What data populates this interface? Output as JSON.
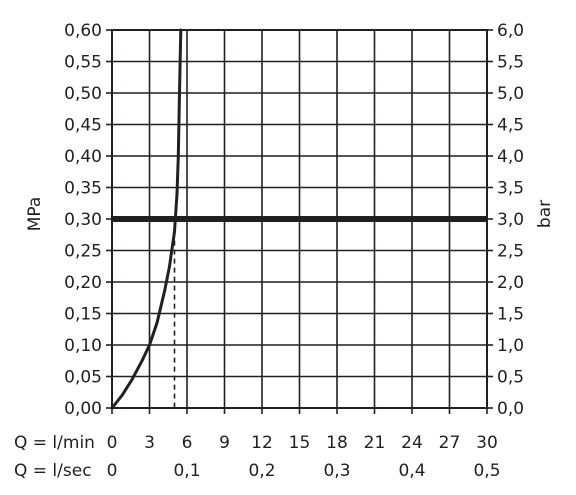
{
  "chart_data": {
    "type": "line",
    "x_axis_bottom": {
      "label": "Q = l/min",
      "range": [
        0,
        30
      ],
      "ticks": [
        "0",
        "3",
        "6",
        "9",
        "12",
        "15",
        "18",
        "21",
        "24",
        "27",
        "30"
      ]
    },
    "x_axis_secondary": {
      "label": "Q = l/sec",
      "ticks": [
        {
          "text": "0",
          "value": 0
        },
        {
          "text": "0,1",
          "value": 6
        },
        {
          "text": "0,2",
          "value": 12
        },
        {
          "text": "0,3",
          "value": 18
        },
        {
          "text": "0,4",
          "value": 24
        },
        {
          "text": "0,5",
          "value": 30
        }
      ]
    },
    "y_axis_left": {
      "label": "MPa",
      "range": [
        0,
        0.6
      ],
      "ticks": [
        "0,00",
        "0,05",
        "0,10",
        "0,15",
        "0,20",
        "0,25",
        "0,30",
        "0,35",
        "0,40",
        "0,45",
        "0,50",
        "0,55",
        "0,60"
      ]
    },
    "y_axis_right": {
      "label": "bar",
      "range": [
        0,
        6
      ],
      "ticks": [
        "0,0",
        "0,5",
        "1,0",
        "1,5",
        "2,0",
        "2,5",
        "3,0",
        "3,5",
        "4,0",
        "4,5",
        "5,0",
        "5,5",
        "6,0"
      ]
    },
    "grid": true,
    "series": [
      {
        "x": [
          0,
          0.8,
          1.6,
          2.4,
          3.0,
          3.6,
          4.2,
          4.6,
          5.0,
          5.2,
          5.3,
          5.35,
          5.4,
          5.5
        ],
        "y": [
          0,
          0.02,
          0.045,
          0.075,
          0.1,
          0.135,
          0.185,
          0.225,
          0.28,
          0.34,
          0.4,
          0.45,
          0.5,
          0.6
        ]
      }
    ],
    "reference_lines": [
      {
        "orientation": "horizontal",
        "y": 0.3,
        "style": "thick"
      },
      {
        "orientation": "vertical",
        "x": 5.0,
        "y_to": 0.28,
        "style": "dashed"
      }
    ]
  }
}
